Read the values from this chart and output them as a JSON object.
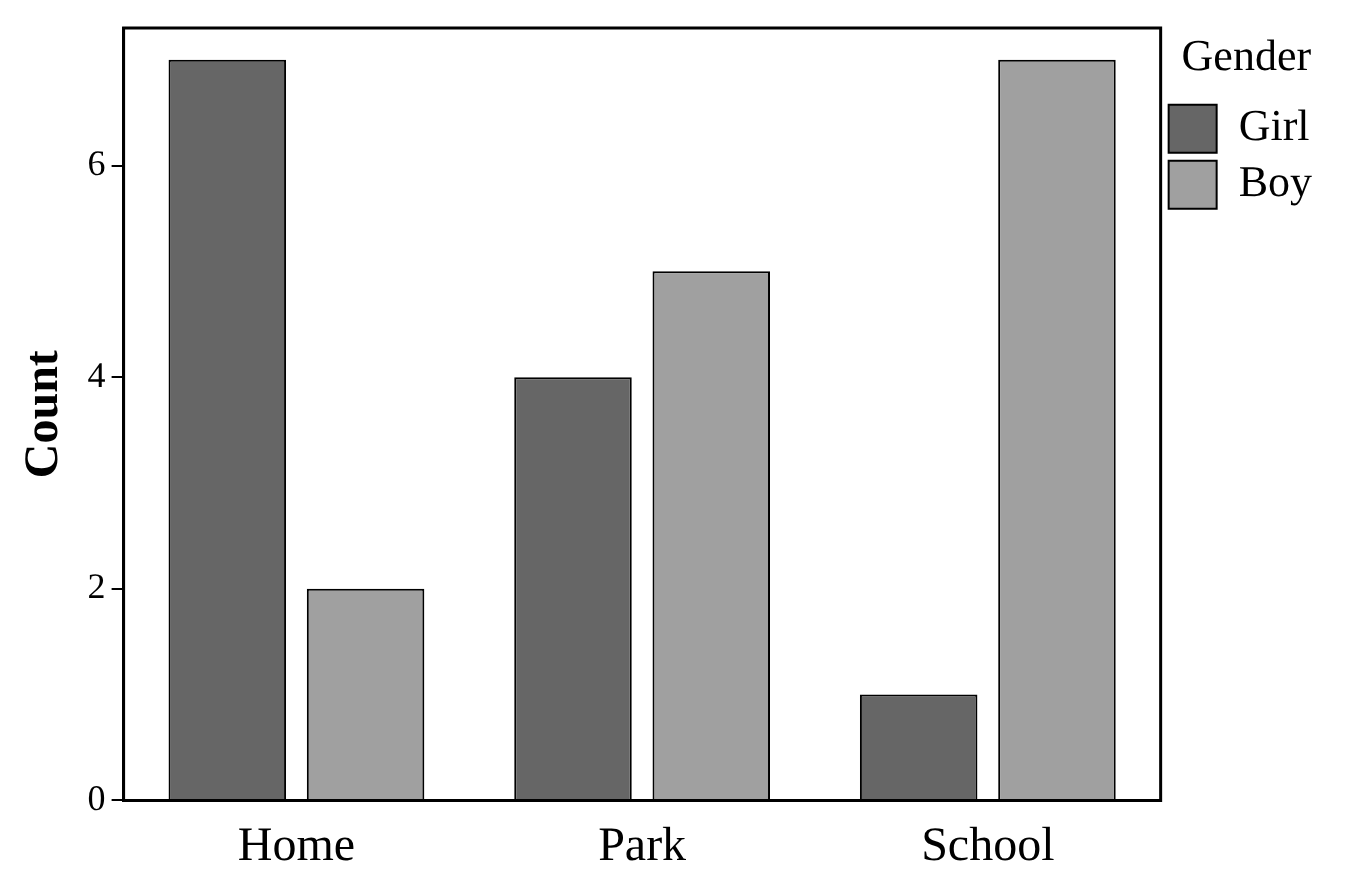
{
  "chart_data": {
    "type": "bar",
    "ylabel": "Count",
    "legend_title": "Gender",
    "categories": [
      "Home",
      "Park",
      "School"
    ],
    "series": [
      {
        "name": "Girl",
        "color": "#666666",
        "values": [
          7,
          4,
          1
        ]
      },
      {
        "name": "Boy",
        "color": "#a0a0a0",
        "values": [
          2,
          5,
          7
        ]
      }
    ],
    "ylim": [
      0,
      7.3
    ],
    "yticks": [
      0,
      2,
      4,
      6
    ],
    "grid": false,
    "legend": "top right"
  }
}
